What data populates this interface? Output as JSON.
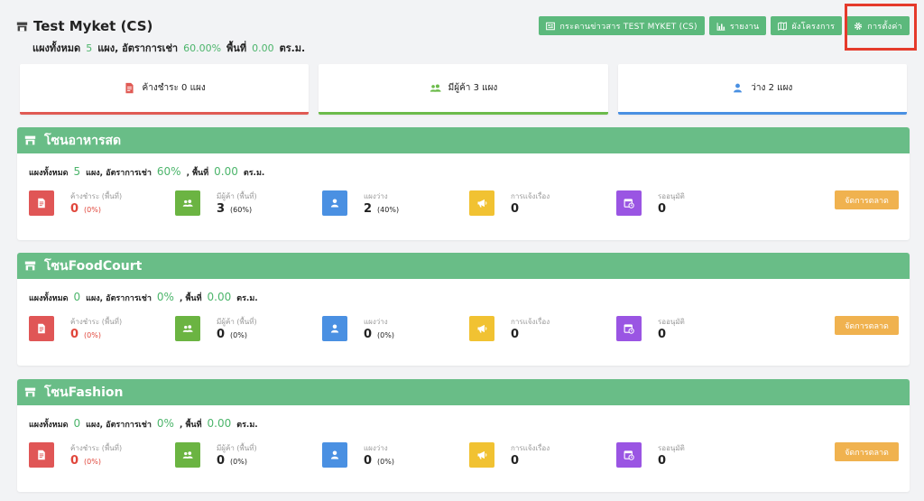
{
  "header": {
    "title": "Test Myket (CS)",
    "summary": {
      "stalls_label": "แผงทั้งหมด",
      "stalls_value": "5",
      "occupancy_label": "แผง, อัตราการเช่า",
      "occupancy_value": "60.00%",
      "area_label": "พื้นที่",
      "area_value": "0.00",
      "area_unit": "ตร.ม."
    }
  },
  "toolbar": {
    "board_label": "กระดานข่าวสาร TEST MYKET (CS)",
    "report_label": "รายงาน",
    "plan_label": "ผังโครงการ",
    "settings_label": "การตั้งค่า"
  },
  "cards": {
    "overdue_label": "ค้างชำระ 0 แผง",
    "tenants_label": "มีผู้ค้า 3 แผง",
    "vacant_label": "ว่าง 2 แผง"
  },
  "zones": [
    {
      "name": "โซนอาหารสด",
      "stalls": "5",
      "occupancy": "60%",
      "area": "0.00",
      "overdue": "0",
      "overdue_pct": "(0%)",
      "tenants": "3",
      "tenants_pct": "(60%)",
      "vacant": "2",
      "vacant_pct": "(40%)",
      "reports": "0",
      "pending": "0"
    },
    {
      "name": "โซนFoodCourt",
      "stalls": "0",
      "occupancy": "0%",
      "area": "0.00",
      "overdue": "0",
      "overdue_pct": "(0%)",
      "tenants": "0",
      "tenants_pct": "(0%)",
      "vacant": "0",
      "vacant_pct": "(0%)",
      "reports": "0",
      "pending": "0"
    },
    {
      "name": "โซนFashion",
      "stalls": "0",
      "occupancy": "0%",
      "area": "0.00",
      "overdue": "0",
      "overdue_pct": "(0%)",
      "tenants": "0",
      "tenants_pct": "(0%)",
      "vacant": "0",
      "vacant_pct": "(0%)",
      "reports": "0",
      "pending": "0"
    }
  ],
  "zone_labels": {
    "stalls_label": "แผงทั้งหมด",
    "stalls_unit": "แผง, อัตราการเช่า",
    "area_label": ", พื้นที่",
    "area_unit": "ตร.ม.",
    "overdue_label": "ค้างชำระ (พื้นที่)",
    "tenants_label": "มีผู้ค้า (พื้นที่)",
    "vacant_label": "แผงว่าง",
    "reports_label": "การแจ้งเรื่อง",
    "pending_label": "รออนุมัติ",
    "manage_label": "จัดการตลาด"
  },
  "colors": {
    "primary_green": "#69bd87",
    "accent_orange": "#f0b24f",
    "danger_red": "#e05656",
    "highlight_box": "#e53a2b"
  },
  "icons": {
    "store": "store-icon",
    "newspaper": "newspaper-icon",
    "chart": "bar-chart-icon",
    "map": "map-icon",
    "gear": "gear-icon",
    "document": "document-icon",
    "users": "users-icon",
    "user": "user-icon",
    "megaphone": "megaphone-icon",
    "calendar": "calendar-clock-icon"
  }
}
